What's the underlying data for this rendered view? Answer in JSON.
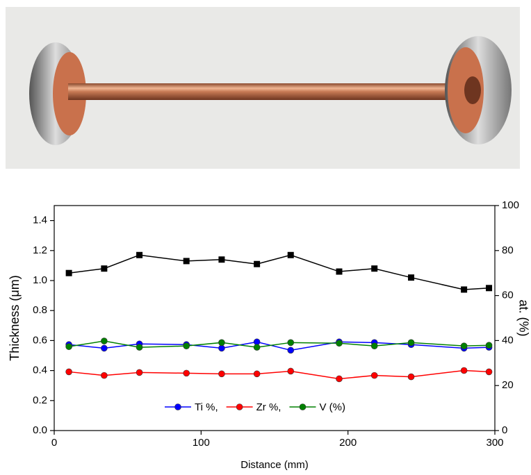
{
  "chart_data": {
    "type": "line",
    "x_label": "Distance (mm)",
    "y_label": "Thickness (μm)",
    "y2_label": "at. (%)",
    "x": [
      10,
      34,
      58,
      90,
      114,
      138,
      161,
      194,
      218,
      243,
      279,
      296
    ],
    "xlim": [
      0,
      300
    ],
    "xticks": [
      0,
      100,
      200,
      300
    ],
    "ylim": [
      0,
      1.5
    ],
    "yticks": [
      {
        "value": 0,
        "label": "0.0"
      },
      0.2,
      0.4,
      0.6,
      0.8,
      {
        "value": 1,
        "label": "1.0"
      },
      1.2,
      1.4
    ],
    "y2lim": [
      0,
      100
    ],
    "y2ticks": [
      0,
      20,
      40,
      60,
      80,
      100
    ],
    "series": [
      {
        "color": "#000000",
        "marker": "square",
        "values": [
          1.05,
          1.08,
          1.17,
          1.13,
          1.14,
          1.11,
          1.17,
          1.06,
          1.08,
          1.02,
          0.94,
          0.95
        ]
      },
      {
        "name": "Ti %,",
        "color": "#0000ff",
        "marker": "circle",
        "axis": "y2",
        "values": [
          38.2,
          36.6,
          38.5,
          38.2,
          36.6,
          39.4,
          35.7,
          39.4,
          39.1,
          38.2,
          36.6,
          37.0
        ]
      },
      {
        "name": "Zr %,",
        "color": "#ff0000",
        "marker": "circle",
        "axis": "y2",
        "values": [
          26.1,
          24.5,
          25.8,
          25.5,
          25.2,
          25.2,
          26.4,
          23.0,
          24.5,
          23.9,
          26.7,
          26.1
        ]
      },
      {
        "name": "V (%)",
        "color": "#008000",
        "marker": "circle",
        "axis": "y2",
        "values": [
          37.3,
          39.8,
          37.0,
          37.6,
          39.1,
          37.0,
          39.1,
          38.8,
          37.6,
          39.1,
          37.6,
          37.9
        ]
      }
    ]
  }
}
